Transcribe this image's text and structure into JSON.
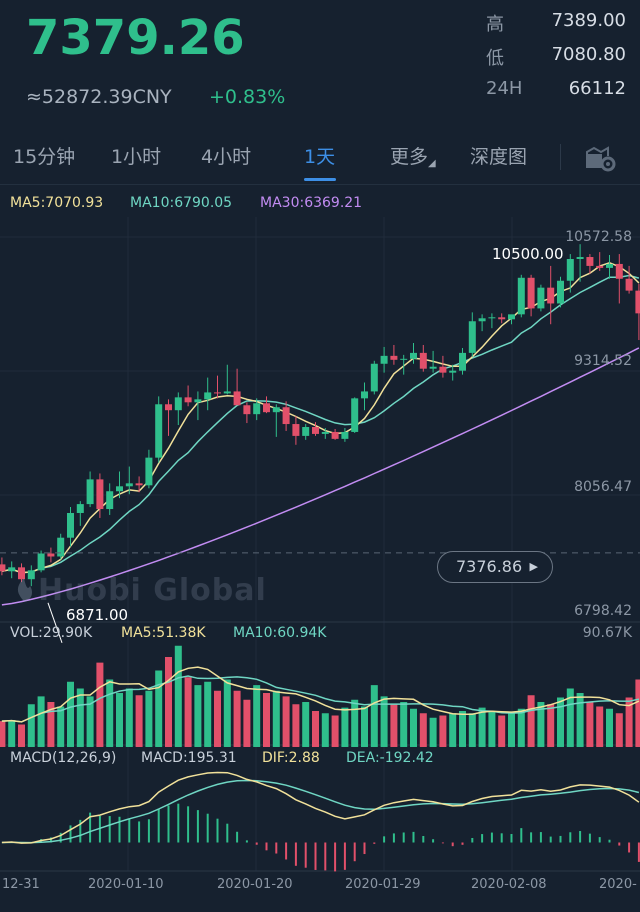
{
  "header": {
    "last_price": "7379.26",
    "cny_price": "≈52872.39CNY",
    "change_pct": "+0.83%",
    "stats": [
      {
        "label": "高",
        "value": "7389.00"
      },
      {
        "label": "低",
        "value": "7080.80"
      },
      {
        "label": "24H",
        "value": "66112"
      }
    ]
  },
  "tabs": [
    {
      "label": "15分钟"
    },
    {
      "label": "1小时"
    },
    {
      "label": "4小时"
    },
    {
      "label": "1天"
    },
    {
      "label": "更多"
    },
    {
      "label": "深度图"
    }
  ],
  "active_tab": "1天",
  "icons": {
    "settings": "settings-icon",
    "more_caret": "caret-icon",
    "pill_arrow": "play-arrow-icon",
    "watermark": "huobi-logo-icon"
  },
  "colors": {
    "up": "#2fbf8c",
    "down": "#e2506a",
    "ma5": "#f1e19a",
    "ma10": "#6fd6c3",
    "ma30": "#c28cf2",
    "accent": "#3d8fe6"
  },
  "main_chart": {
    "legend": {
      "ma5": "MA5:7070.93",
      "ma10": "MA10:6790.05",
      "ma30": "MA30:6369.21"
    },
    "y_labels": [
      "10572.58",
      "9314.52",
      "8056.47",
      "6798.42"
    ],
    "current_price_tag": "7376.86",
    "high_marker": "10500.00",
    "low_marker": "6871.00",
    "watermark": "Huobi Global"
  },
  "volume_chart": {
    "legend": {
      "vol": "VOL:29.90K",
      "ma5": "MA5:51.38K",
      "ma10": "MA10:60.94K"
    },
    "max_label": "90.67K"
  },
  "macd_chart": {
    "legend": {
      "macd_params": "MACD(12,26,9)",
      "macd": "MACD:195.31",
      "dif": "DIF:2.88",
      "dea": "DEA:-192.42"
    }
  },
  "date_labels": [
    "12-31",
    "2020-01-10",
    "2020-01-20",
    "2020-01-29",
    "2020-02-08",
    "2020-"
  ],
  "chart_data": {
    "type": "candlestick",
    "y_range": [
      6798.42,
      10572.58
    ],
    "candles": [
      {
        "o": 7260,
        "h": 7330,
        "l": 7150,
        "c": 7190
      },
      {
        "o": 7190,
        "h": 7290,
        "l": 7120,
        "c": 7230
      },
      {
        "o": 7230,
        "h": 7270,
        "l": 7080,
        "c": 7110
      },
      {
        "o": 7110,
        "h": 7250,
        "l": 7040,
        "c": 7200
      },
      {
        "o": 7200,
        "h": 7400,
        "l": 7180,
        "c": 7370
      },
      {
        "o": 7370,
        "h": 7430,
        "l": 7280,
        "c": 7340
      },
      {
        "o": 7340,
        "h": 7570,
        "l": 7310,
        "c": 7530
      },
      {
        "o": 7530,
        "h": 7840,
        "l": 7440,
        "c": 7780
      },
      {
        "o": 7780,
        "h": 7900,
        "l": 7650,
        "c": 7870
      },
      {
        "o": 7870,
        "h": 8200,
        "l": 7840,
        "c": 8120
      },
      {
        "o": 8120,
        "h": 8180,
        "l": 7730,
        "c": 7820
      },
      {
        "o": 7820,
        "h": 8080,
        "l": 7760,
        "c": 8000
      },
      {
        "o": 8000,
        "h": 8200,
        "l": 7930,
        "c": 8050
      },
      {
        "o": 8050,
        "h": 8250,
        "l": 7970,
        "c": 8080
      },
      {
        "o": 8080,
        "h": 8150,
        "l": 7990,
        "c": 8060
      },
      {
        "o": 8060,
        "h": 8420,
        "l": 8030,
        "c": 8340
      },
      {
        "o": 8340,
        "h": 8960,
        "l": 8290,
        "c": 8880
      },
      {
        "o": 8880,
        "h": 8930,
        "l": 8560,
        "c": 8820
      },
      {
        "o": 8820,
        "h": 9000,
        "l": 8670,
        "c": 8950
      },
      {
        "o": 8950,
        "h": 9070,
        "l": 8860,
        "c": 8900
      },
      {
        "o": 8900,
        "h": 9010,
        "l": 8720,
        "c": 8930
      },
      {
        "o": 8930,
        "h": 9150,
        "l": 8820,
        "c": 9000
      },
      {
        "o": 9000,
        "h": 9170,
        "l": 8940,
        "c": 8990
      },
      {
        "o": 8990,
        "h": 9280,
        "l": 8980,
        "c": 9010
      },
      {
        "o": 9010,
        "h": 9240,
        "l": 8880,
        "c": 8870
      },
      {
        "o": 8870,
        "h": 8900,
        "l": 8690,
        "c": 8780
      },
      {
        "o": 8780,
        "h": 8940,
        "l": 8720,
        "c": 8890
      },
      {
        "o": 8890,
        "h": 8960,
        "l": 8790,
        "c": 8800
      },
      {
        "o": 8800,
        "h": 8880,
        "l": 8550,
        "c": 8850
      },
      {
        "o": 8850,
        "h": 8910,
        "l": 8610,
        "c": 8680
      },
      {
        "o": 8680,
        "h": 8760,
        "l": 8470,
        "c": 8560
      },
      {
        "o": 8560,
        "h": 8680,
        "l": 8520,
        "c": 8650
      },
      {
        "o": 8650,
        "h": 8700,
        "l": 8560,
        "c": 8580
      },
      {
        "o": 8580,
        "h": 8640,
        "l": 8530,
        "c": 8600
      },
      {
        "o": 8600,
        "h": 8630,
        "l": 8520,
        "c": 8530
      },
      {
        "o": 8530,
        "h": 8640,
        "l": 8500,
        "c": 8600
      },
      {
        "o": 8600,
        "h": 8950,
        "l": 8590,
        "c": 8940
      },
      {
        "o": 8940,
        "h": 9100,
        "l": 8820,
        "c": 9010
      },
      {
        "o": 9010,
        "h": 9320,
        "l": 8980,
        "c": 9290
      },
      {
        "o": 9290,
        "h": 9460,
        "l": 9200,
        "c": 9370
      },
      {
        "o": 9370,
        "h": 9480,
        "l": 9280,
        "c": 9330
      },
      {
        "o": 9330,
        "h": 9380,
        "l": 9180,
        "c": 9340
      },
      {
        "o": 9340,
        "h": 9500,
        "l": 9290,
        "c": 9400
      },
      {
        "o": 9400,
        "h": 9480,
        "l": 9210,
        "c": 9240
      },
      {
        "o": 9240,
        "h": 9420,
        "l": 9200,
        "c": 9260
      },
      {
        "o": 9260,
        "h": 9370,
        "l": 9150,
        "c": 9200
      },
      {
        "o": 9200,
        "h": 9280,
        "l": 9120,
        "c": 9220
      },
      {
        "o": 9220,
        "h": 9450,
        "l": 9180,
        "c": 9400
      },
      {
        "o": 9400,
        "h": 9810,
        "l": 9360,
        "c": 9720
      },
      {
        "o": 9720,
        "h": 9790,
        "l": 9620,
        "c": 9750
      },
      {
        "o": 9750,
        "h": 9800,
        "l": 9650,
        "c": 9760
      },
      {
        "o": 9760,
        "h": 9800,
        "l": 9700,
        "c": 9740
      },
      {
        "o": 9740,
        "h": 9780,
        "l": 9690,
        "c": 9790
      },
      {
        "o": 9790,
        "h": 10190,
        "l": 9760,
        "c": 10160
      },
      {
        "o": 10160,
        "h": 10190,
        "l": 9770,
        "c": 9850
      },
      {
        "o": 9850,
        "h": 10090,
        "l": 9820,
        "c": 10060
      },
      {
        "o": 10060,
        "h": 10280,
        "l": 9690,
        "c": 9900
      },
      {
        "o": 9900,
        "h": 10170,
        "l": 9860,
        "c": 10130
      },
      {
        "o": 10130,
        "h": 10400,
        "l": 10010,
        "c": 10350
      },
      {
        "o": 10350,
        "h": 10500,
        "l": 10120,
        "c": 10370
      },
      {
        "o": 10370,
        "h": 10400,
        "l": 10200,
        "c": 10280
      },
      {
        "o": 10280,
        "h": 10420,
        "l": 10230,
        "c": 10260
      },
      {
        "o": 10260,
        "h": 10390,
        "l": 10150,
        "c": 10300
      },
      {
        "o": 10300,
        "h": 10400,
        "l": 9900,
        "c": 10150
      },
      {
        "o": 10150,
        "h": 10280,
        "l": 10000,
        "c": 10030
      },
      {
        "o": 10030,
        "h": 10100,
        "l": 9530,
        "c": 9800
      }
    ],
    "volume_range": [
      0,
      90.67
    ],
    "volumes": [
      23,
      24,
      20,
      38,
      45,
      40,
      36,
      58,
      52,
      45,
      75,
      60,
      48,
      52,
      46,
      50,
      68,
      80,
      90,
      62,
      55,
      58,
      50,
      60,
      50,
      42,
      55,
      48,
      50,
      45,
      38,
      40,
      32,
      30,
      28,
      35,
      42,
      36,
      55,
      45,
      38,
      40,
      34,
      30,
      26,
      28,
      30,
      32,
      30,
      35,
      32,
      28,
      30,
      34,
      46,
      40,
      38,
      44,
      52,
      48,
      40,
      36,
      34,
      30,
      44,
      60
    ]
  }
}
